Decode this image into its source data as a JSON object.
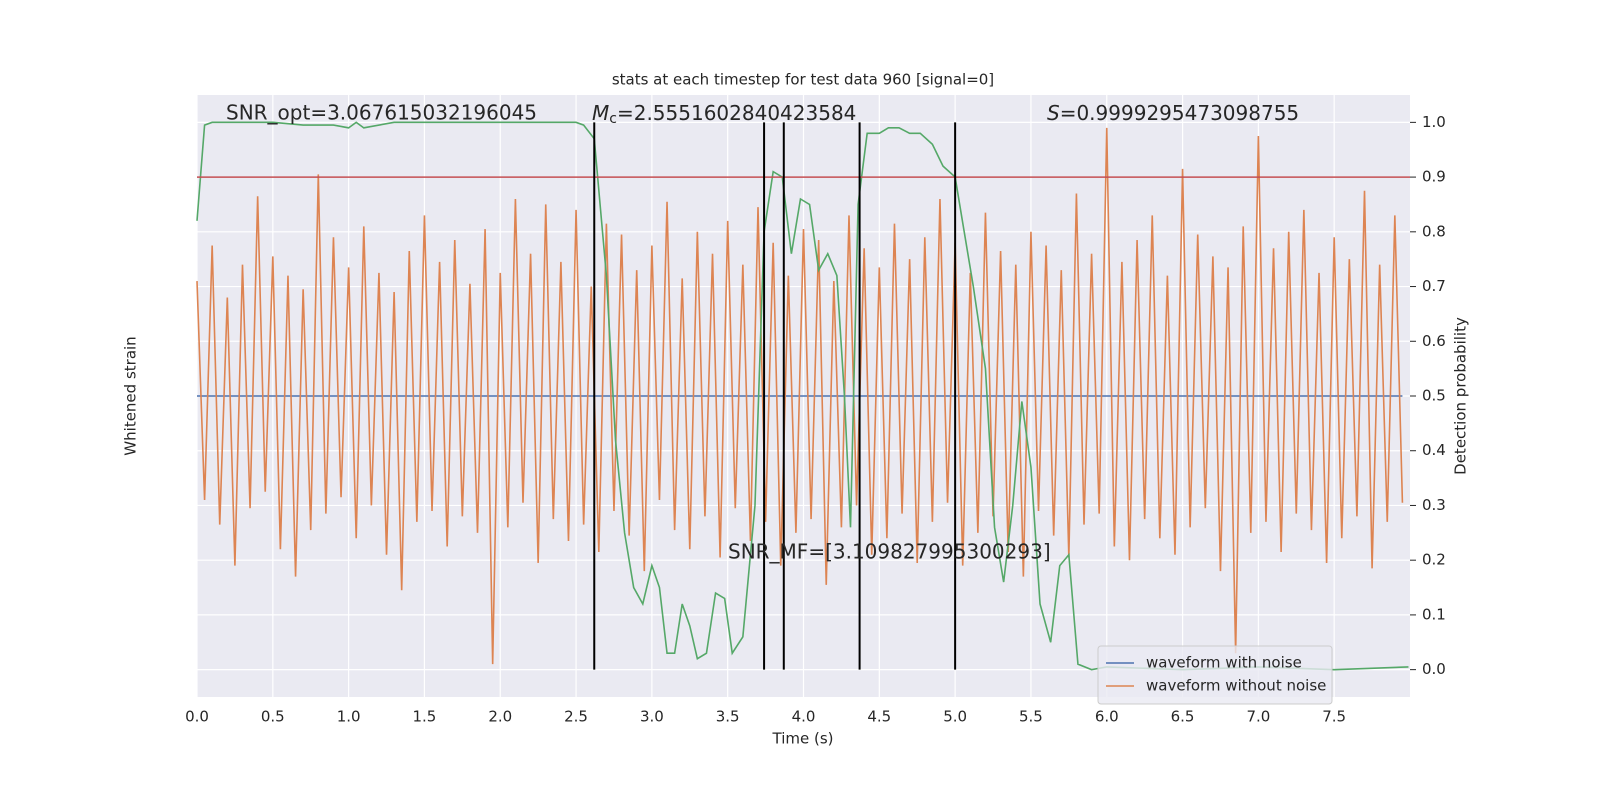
{
  "chart_data": {
    "type": "line",
    "title": "stats at each timestep for test data 960 [signal=0]",
    "xlabel": "Time (s)",
    "ylabel": "Whitened strain",
    "y2label": "Detection probability",
    "xlim": [
      0,
      8
    ],
    "xticks": [
      {
        "value": 0,
        "label": "0.0"
      },
      0.5,
      {
        "value": 1,
        "label": "1.0"
      },
      1.5,
      {
        "value": 2,
        "label": "2.0"
      },
      2.5,
      {
        "value": 3,
        "label": "3.0"
      },
      3.5,
      {
        "value": 4,
        "label": "4.0"
      },
      4.5,
      {
        "value": 5,
        "label": "5.0"
      },
      5.5,
      {
        "value": 6,
        "label": "6.0"
      },
      6.5,
      {
        "value": 7,
        "label": "7.0"
      },
      7.5
    ],
    "ylim": [
      -1.1,
      1.1
    ],
    "y2lim": [
      -0.05,
      1.05
    ],
    "y2ticks": [
      {
        "value": 0,
        "label": "0.0"
      },
      0.1,
      0.2,
      0.3,
      0.4,
      0.5,
      0.6,
      0.7,
      0.8,
      0.9,
      {
        "value": 1,
        "label": "1.0"
      }
    ],
    "grid": true,
    "legend": "lower right",
    "threshold": {
      "value": 0.9,
      "color": "#c44e52",
      "axis": "y2"
    },
    "vlines": {
      "x": [
        2.62,
        3.74,
        3.87,
        4.37,
        5.0
      ],
      "ymin": 0,
      "ymax": 1,
      "color": "#000000"
    },
    "annotations": {
      "snr_opt": "SNR_opt=3.067615032196045",
      "mc": {
        "symbol": "M",
        "subscript": "c",
        "text": "=2.5551602840423584"
      },
      "s": {
        "symbol": "S",
        "text": "=0.9999295473098755"
      },
      "snr_mf": "SNR_MF=[3.109827995300293]"
    },
    "series": [
      {
        "name": "waveform with noise",
        "color": "#4c72b0",
        "axis": "y",
        "x": [
          0,
          7.95
        ],
        "values": [
          0,
          0
        ]
      },
      {
        "name": "waveform without noise",
        "color": "#dd8452",
        "axis": "y",
        "x": [
          0,
          0.05,
          0.1,
          0.15,
          0.2,
          0.25,
          0.3,
          0.35,
          0.4,
          0.45,
          0.5,
          0.55,
          0.6,
          0.65,
          0.7,
          0.75,
          0.8,
          0.85,
          0.9,
          0.95,
          1,
          1.05,
          1.1,
          1.15,
          1.2,
          1.25,
          1.3,
          1.35,
          1.4,
          1.45,
          1.5,
          1.55,
          1.6,
          1.65,
          1.7,
          1.75,
          1.8,
          1.85,
          1.9,
          1.95,
          2,
          2.05,
          2.1,
          2.15,
          2.2,
          2.25,
          2.3,
          2.35,
          2.4,
          2.45,
          2.5,
          2.55,
          2.6,
          2.65,
          2.7,
          2.75,
          2.8,
          2.85,
          2.9,
          2.95,
          3,
          3.05,
          3.1,
          3.15,
          3.2,
          3.25,
          3.3,
          3.35,
          3.4,
          3.45,
          3.5,
          3.55,
          3.6,
          3.65,
          3.7,
          3.75,
          3.8,
          3.85,
          3.9,
          3.95,
          4,
          4.05,
          4.1,
          4.15,
          4.2,
          4.25,
          4.3,
          4.35,
          4.4,
          4.45,
          4.5,
          4.55,
          4.6,
          4.65,
          4.7,
          4.75,
          4.8,
          4.85,
          4.9,
          4.95,
          5,
          5.05,
          5.1,
          5.15,
          5.2,
          5.25,
          5.3,
          5.35,
          5.4,
          5.45,
          5.5,
          5.55,
          5.6,
          5.65,
          5.7,
          5.75,
          5.8,
          5.85,
          5.9,
          5.95,
          6,
          6.05,
          6.1,
          6.15,
          6.2,
          6.25,
          6.3,
          6.35,
          6.4,
          6.45,
          6.5,
          6.55,
          6.6,
          6.65,
          6.7,
          6.75,
          6.8,
          6.85,
          6.9,
          6.95,
          7,
          7.05,
          7.1,
          7.15,
          7.2,
          7.25,
          7.3,
          7.35,
          7.4,
          7.45,
          7.5,
          7.55,
          7.6,
          7.65,
          7.7,
          7.75,
          7.8,
          7.85,
          7.9,
          7.95
        ],
        "values": [
          0.42,
          -0.38,
          0.55,
          -0.47,
          0.36,
          -0.62,
          0.48,
          -0.41,
          0.73,
          -0.35,
          0.51,
          -0.56,
          0.44,
          -0.66,
          0.39,
          -0.49,
          0.81,
          -0.43,
          0.58,
          -0.37,
          0.47,
          -0.52,
          0.62,
          -0.4,
          0.45,
          -0.58,
          0.38,
          -0.71,
          0.53,
          -0.46,
          0.66,
          -0.42,
          0.49,
          -0.55,
          0.57,
          -0.44,
          0.41,
          -0.5,
          0.61,
          -0.98,
          0.45,
          -0.48,
          0.72,
          -0.39,
          0.52,
          -0.61,
          0.7,
          -0.45,
          0.49,
          -0.53,
          0.68,
          -0.47,
          0.4,
          -0.57,
          0.63,
          -0.42,
          0.59,
          -0.51,
          0.46,
          -0.64,
          0.55,
          -0.38,
          0.71,
          -0.49,
          0.43,
          -0.56,
          0.6,
          -0.44,
          0.52,
          -0.59,
          0.64,
          -0.41,
          0.48,
          -0.53,
          0.69,
          -0.46,
          0.56,
          -0.62,
          0.44,
          -0.5,
          0.61,
          -0.45,
          0.57,
          -0.69,
          0.42,
          -0.48,
          0.66,
          -0.4,
          0.54,
          -0.58,
          0.47,
          -0.52,
          0.63,
          -0.43,
          0.5,
          -0.61,
          0.58,
          -0.46,
          0.72,
          -0.39,
          0.56,
          -0.62,
          0.45,
          -0.5,
          0.67,
          -0.44,
          0.53,
          -0.57,
          0.48,
          -0.66,
          0.6,
          -0.42,
          0.55,
          -0.51,
          0.46,
          -0.59,
          0.74,
          -0.47,
          0.52,
          -0.43,
          0.98,
          -0.55,
          0.49,
          -0.6,
          0.57,
          -0.45,
          0.66,
          -0.52,
          0.44,
          -0.58,
          0.83,
          -0.48,
          0.59,
          -0.41,
          0.51,
          -0.64,
          0.47,
          -0.94,
          0.62,
          -0.5,
          0.95,
          -0.46,
          0.54,
          -0.57,
          0.6,
          -0.43,
          0.68,
          -0.49,
          0.45,
          -0.61,
          0.58,
          -0.52,
          0.5,
          -0.44,
          0.75,
          -0.63,
          0.48,
          -0.46,
          0.66,
          -0.39
        ]
      },
      {
        "color": "#55a868",
        "axis": "y2",
        "x": [
          0,
          0.05,
          0.1,
          0.3,
          0.5,
          0.7,
          0.9,
          1.0,
          1.05,
          1.1,
          1.3,
          1.5,
          1.7,
          1.9,
          2.1,
          2.3,
          2.5,
          2.55,
          2.62,
          2.7,
          2.76,
          2.82,
          2.88,
          2.94,
          3.0,
          3.05,
          3.1,
          3.15,
          3.2,
          3.25,
          3.3,
          3.36,
          3.42,
          3.48,
          3.53,
          3.6,
          3.68,
          3.74,
          3.8,
          3.86,
          3.92,
          3.98,
          4.04,
          4.1,
          4.16,
          4.22,
          4.27,
          4.31,
          4.36,
          4.42,
          4.5,
          4.56,
          4.63,
          4.7,
          4.77,
          4.85,
          4.92,
          5.0,
          5.06,
          5.12,
          5.2,
          5.26,
          5.32,
          5.38,
          5.44,
          5.5,
          5.56,
          5.63,
          5.69,
          5.75,
          5.81,
          5.9,
          6.0,
          6.5,
          7.0,
          7.5,
          7.99
        ],
        "values": [
          0.82,
          0.995,
          1.0,
          1.0,
          1.0,
          0.995,
          0.995,
          0.99,
          1.0,
          0.99,
          1.0,
          1.0,
          1.0,
          1.0,
          1.0,
          1.0,
          1.0,
          0.995,
          0.97,
          0.72,
          0.42,
          0.25,
          0.15,
          0.12,
          0.19,
          0.15,
          0.03,
          0.03,
          0.12,
          0.08,
          0.02,
          0.03,
          0.14,
          0.13,
          0.03,
          0.06,
          0.3,
          0.8,
          0.91,
          0.9,
          0.76,
          0.86,
          0.85,
          0.73,
          0.76,
          0.72,
          0.5,
          0.26,
          0.85,
          0.98,
          0.98,
          0.99,
          0.99,
          0.98,
          0.98,
          0.96,
          0.92,
          0.9,
          0.8,
          0.7,
          0.55,
          0.26,
          0.16,
          0.3,
          0.49,
          0.37,
          0.12,
          0.05,
          0.19,
          0.21,
          0.01,
          0.0,
          0.005,
          0.0,
          0.005,
          0.0,
          0.005
        ]
      }
    ]
  }
}
